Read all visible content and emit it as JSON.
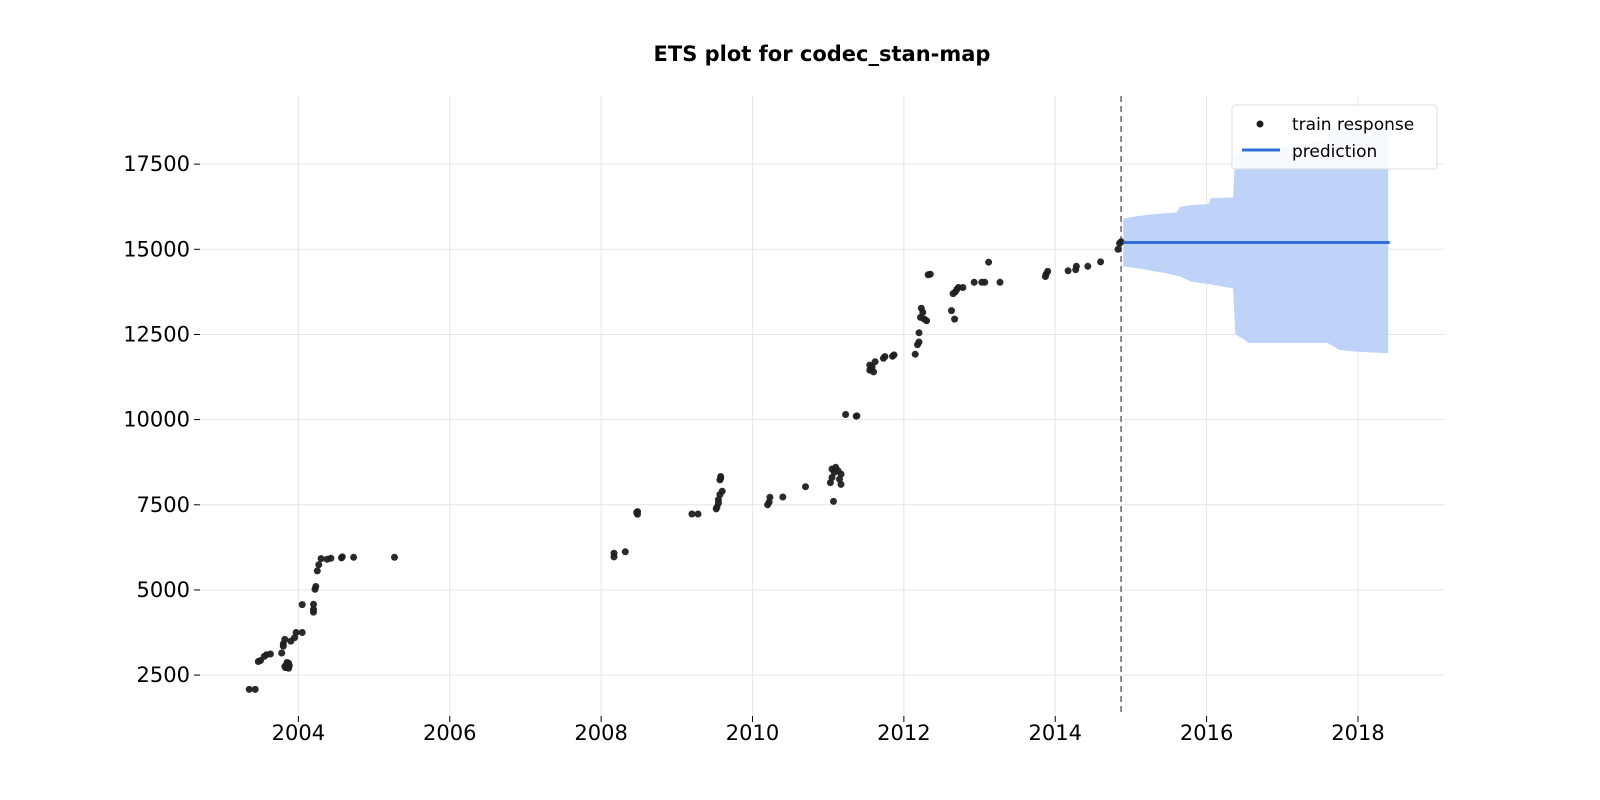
{
  "chart_data": {
    "type": "scatter",
    "title": "ETS plot for codec_stan-map",
    "xlabel": "",
    "ylabel": "",
    "xlim": [
      2002.7,
      2019.15
    ],
    "ylim": [
      1300,
      19500
    ],
    "x_ticks": [
      2004,
      2006,
      2008,
      2010,
      2012,
      2014,
      2016,
      2018
    ],
    "y_ticks": [
      2500,
      5000,
      7500,
      10000,
      12500,
      15000,
      17500
    ],
    "x_tick_labels": [
      "2004",
      "2006",
      "2008",
      "2010",
      "2012",
      "2014",
      "2016",
      "2018"
    ],
    "y_tick_labels": [
      "2500",
      "5000",
      "7500",
      "10000",
      "12500",
      "15000",
      "17500"
    ],
    "grid": true,
    "legend": {
      "placement": "top-right",
      "entries": [
        "train response",
        "prediction"
      ]
    },
    "train_end_marker": 2014.87,
    "colors": {
      "points": "#1f1f1f",
      "prediction": "#2f6fd8",
      "band": "#bfd3f8",
      "divider": "#666666",
      "grid": "#e6e6e6"
    },
    "series": [
      {
        "name": "train response",
        "kind": "scatter",
        "points": [
          [
            2003.35,
            2080
          ],
          [
            2003.43,
            2080
          ],
          [
            2003.47,
            2900
          ],
          [
            2003.5,
            2930
          ],
          [
            2003.55,
            3050
          ],
          [
            2003.58,
            3100
          ],
          [
            2003.63,
            3120
          ],
          [
            2003.78,
            3150
          ],
          [
            2003.8,
            3350
          ],
          [
            2003.8,
            3420
          ],
          [
            2003.82,
            3550
          ],
          [
            2003.82,
            2760
          ],
          [
            2003.83,
            2720
          ],
          [
            2003.85,
            2870
          ],
          [
            2003.87,
            2850
          ],
          [
            2003.87,
            2700
          ],
          [
            2003.88,
            2780
          ],
          [
            2003.9,
            3500
          ],
          [
            2003.95,
            3600
          ],
          [
            2003.97,
            3750
          ],
          [
            2004.05,
            3750
          ],
          [
            2004.05,
            4570
          ],
          [
            2004.2,
            4580
          ],
          [
            2004.2,
            4430
          ],
          [
            2004.2,
            4350
          ],
          [
            2004.22,
            5020
          ],
          [
            2004.23,
            5100
          ],
          [
            2004.25,
            5560
          ],
          [
            2004.27,
            5740
          ],
          [
            2004.3,
            5920
          ],
          [
            2004.38,
            5900
          ],
          [
            2004.43,
            5930
          ],
          [
            2004.57,
            5940
          ],
          [
            2004.58,
            5970
          ],
          [
            2004.73,
            5960
          ],
          [
            2005.27,
            5960
          ],
          [
            2008.17,
            6080
          ],
          [
            2008.17,
            5970
          ],
          [
            2008.32,
            6120
          ],
          [
            2008.47,
            7270
          ],
          [
            2008.48,
            7220
          ],
          [
            2008.48,
            7300
          ],
          [
            2009.2,
            7230
          ],
          [
            2009.28,
            7230
          ],
          [
            2009.52,
            7380
          ],
          [
            2009.53,
            7430
          ],
          [
            2009.55,
            7550
          ],
          [
            2009.55,
            7650
          ],
          [
            2009.57,
            7800
          ],
          [
            2009.57,
            8230
          ],
          [
            2009.58,
            8330
          ],
          [
            2009.58,
            8280
          ],
          [
            2009.6,
            7900
          ],
          [
            2010.2,
            7500
          ],
          [
            2010.22,
            7580
          ],
          [
            2010.23,
            7720
          ],
          [
            2010.4,
            7730
          ],
          [
            2010.7,
            8030
          ],
          [
            2011.03,
            8150
          ],
          [
            2011.05,
            8300
          ],
          [
            2011.05,
            8550
          ],
          [
            2011.07,
            7600
          ],
          [
            2011.08,
            8450
          ],
          [
            2011.1,
            8600
          ],
          [
            2011.13,
            8500
          ],
          [
            2011.15,
            8250
          ],
          [
            2011.17,
            8400
          ],
          [
            2011.17,
            8100
          ],
          [
            2011.23,
            10150
          ],
          [
            2011.37,
            10100
          ],
          [
            2011.38,
            10110
          ],
          [
            2011.55,
            11450
          ],
          [
            2011.55,
            11600
          ],
          [
            2011.57,
            11500
          ],
          [
            2011.58,
            11550
          ],
          [
            2011.6,
            11400
          ],
          [
            2011.62,
            11700
          ],
          [
            2011.73,
            11800
          ],
          [
            2011.75,
            11850
          ],
          [
            2011.85,
            11860
          ],
          [
            2011.87,
            11900
          ],
          [
            2012.15,
            11920
          ],
          [
            2012.18,
            12200
          ],
          [
            2012.2,
            12280
          ],
          [
            2012.2,
            12550
          ],
          [
            2012.22,
            13000
          ],
          [
            2012.23,
            13270
          ],
          [
            2012.25,
            13150
          ],
          [
            2012.27,
            12950
          ],
          [
            2012.3,
            12900
          ],
          [
            2012.32,
            14250
          ],
          [
            2012.35,
            14270
          ],
          [
            2012.63,
            13200
          ],
          [
            2012.65,
            13700
          ],
          [
            2012.67,
            12950
          ],
          [
            2012.68,
            13750
          ],
          [
            2012.7,
            13820
          ],
          [
            2012.72,
            13880
          ],
          [
            2012.78,
            13880
          ],
          [
            2012.93,
            14030
          ],
          [
            2013.03,
            14030
          ],
          [
            2013.07,
            14030
          ],
          [
            2013.12,
            14620
          ],
          [
            2013.27,
            14030
          ],
          [
            2013.87,
            14200
          ],
          [
            2013.88,
            14270
          ],
          [
            2013.9,
            14350
          ],
          [
            2014.17,
            14370
          ],
          [
            2014.27,
            14400
          ],
          [
            2014.28,
            14500
          ],
          [
            2014.43,
            14500
          ],
          [
            2014.6,
            14630
          ],
          [
            2014.83,
            15000
          ],
          [
            2014.85,
            15180
          ],
          [
            2014.87,
            15220
          ]
        ]
      },
      {
        "name": "prediction",
        "kind": "line",
        "x": [
          2014.9,
          2018.42
        ],
        "y": [
          15200,
          15200
        ],
        "band_upper": [
          [
            2014.9,
            15900
          ],
          [
            2015.1,
            15980
          ],
          [
            2015.4,
            16050
          ],
          [
            2015.6,
            16080
          ],
          [
            2015.65,
            16250
          ],
          [
            2015.8,
            16300
          ],
          [
            2016.03,
            16330
          ],
          [
            2016.05,
            16500
          ],
          [
            2016.35,
            16530
          ],
          [
            2016.38,
            17800
          ],
          [
            2016.8,
            17950
          ],
          [
            2017.2,
            18050
          ],
          [
            2017.6,
            18200
          ],
          [
            2017.65,
            18500
          ],
          [
            2018.4,
            18600
          ]
        ],
        "band_lower": [
          [
            2014.9,
            14500
          ],
          [
            2015.2,
            14400
          ],
          [
            2015.45,
            14300
          ],
          [
            2015.65,
            14200
          ],
          [
            2015.8,
            14050
          ],
          [
            2016.03,
            13980
          ],
          [
            2016.35,
            13850
          ],
          [
            2016.38,
            12500
          ],
          [
            2016.5,
            12350
          ],
          [
            2016.55,
            12250
          ],
          [
            2017.6,
            12250
          ],
          [
            2017.75,
            12050
          ],
          [
            2017.95,
            12000
          ],
          [
            2018.4,
            11950
          ]
        ]
      }
    ]
  }
}
